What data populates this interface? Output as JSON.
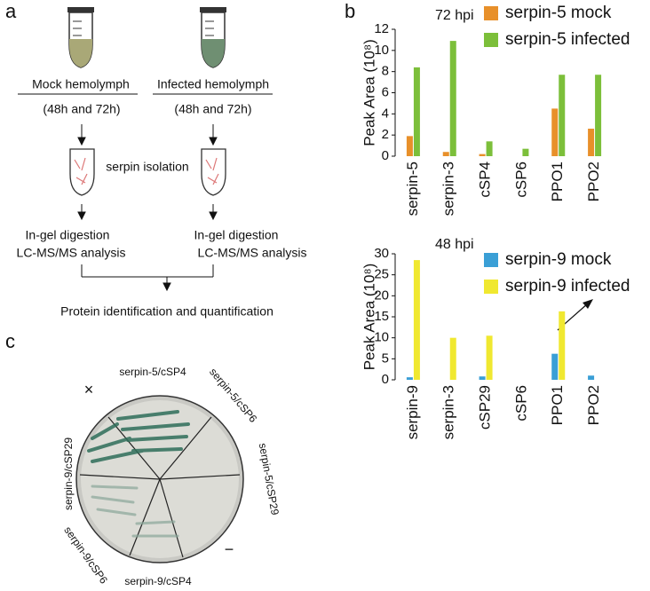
{
  "panel_labels": [
    "a",
    "b",
    "c"
  ],
  "workflow": {
    "mock_sample": "Mock hemolymph",
    "infected_sample": "Infected hemolymph",
    "mock_timepoints": "(48h and 72h)",
    "infected_timepoints": "(48h and 72h)",
    "isolation_step": "serpin isolation",
    "mock_digestion": "In-gel digestion",
    "mock_analysis": "LC-MS/MS analysis",
    "infected_digestion": "In-gel digestion",
    "infected_analysis": "LC-MS/MS analysis",
    "final_step": "Protein identification and quantification"
  },
  "chart_data": [
    {
      "type": "bar",
      "annotation": "72 hpi",
      "y_label": "Peak Area (10⁸)",
      "categories": [
        "serpin-5",
        "serpin-3",
        "cSP4",
        "cSP6",
        "PPO1",
        "PPO2"
      ],
      "series": [
        {
          "name": "serpin-5 mock",
          "color": "#e8902a",
          "values": [
            1.9,
            0.4,
            0.2,
            0,
            4.5,
            2.6
          ]
        },
        {
          "name": "serpin-5 infected",
          "color": "#7cbf3a",
          "values": [
            8.4,
            10.9,
            1.4,
            0.7,
            7.7,
            7.7
          ]
        }
      ],
      "ylim": [
        0,
        12
      ],
      "yticks": [
        0,
        2,
        4,
        6,
        8,
        10,
        12
      ]
    },
    {
      "type": "bar",
      "annotation": "48 hpi",
      "y_label": "Peak Area (10⁸)",
      "categories": [
        "serpin-9",
        "serpin-3",
        "cSP29",
        "cSP6",
        "PPO1",
        "PPO2"
      ],
      "series": [
        {
          "name": "serpin-9 mock",
          "color": "#3a9fd6",
          "values": [
            0.6,
            0,
            0.8,
            0,
            6.2,
            1.0
          ]
        },
        {
          "name": "serpin-9 infected",
          "color": "#f0e830",
          "values": [
            28.5,
            10.0,
            10.5,
            0,
            16.3,
            0
          ]
        }
      ],
      "ylim": [
        0,
        30
      ],
      "yticks": [
        0,
        5,
        10,
        15,
        20,
        25,
        30
      ]
    }
  ],
  "plate": {
    "labels": [
      "serpin-5/cSP4",
      "serpin-5/cSP6",
      "serpin-5/cSP29",
      "serpin-9/cSP29",
      "serpin-9/cSP6",
      "serpin-9/cSP4"
    ],
    "positive_mark": "×",
    "negative_mark": "−"
  }
}
